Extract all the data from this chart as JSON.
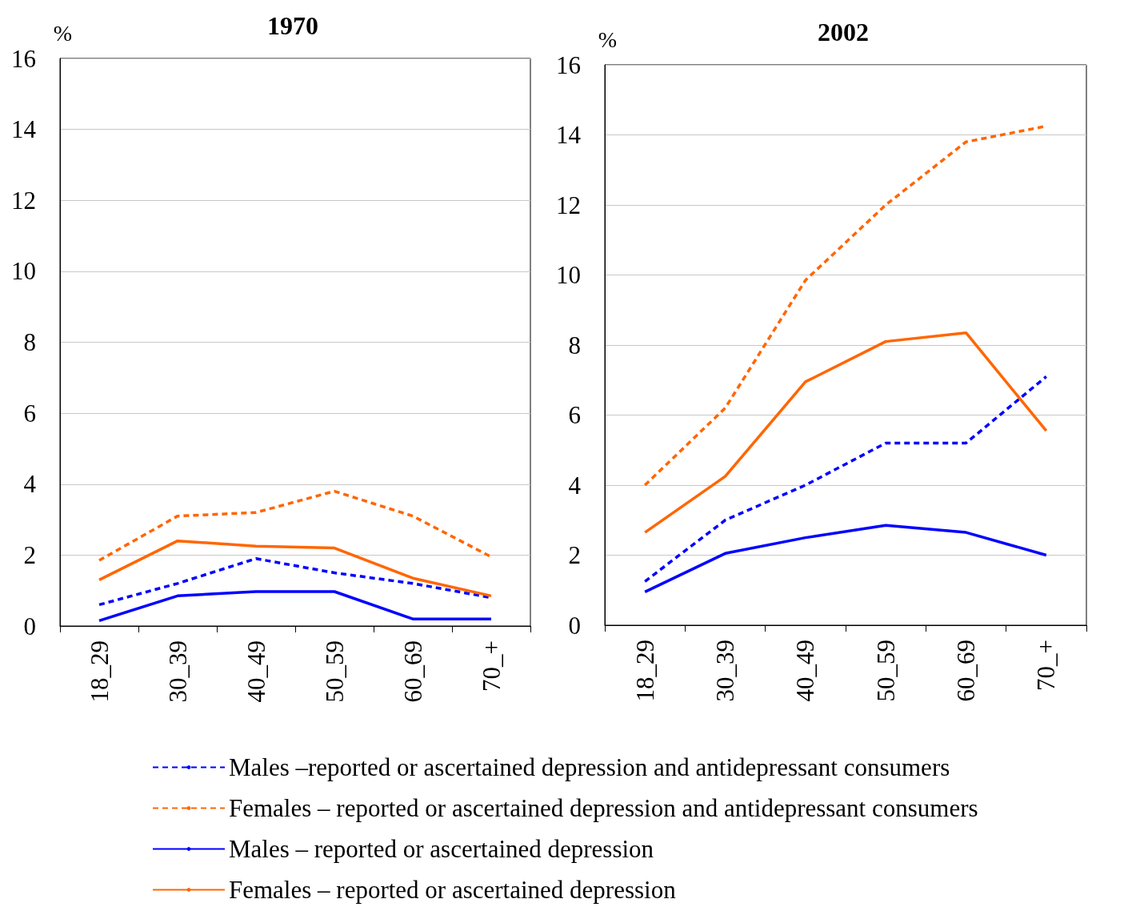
{
  "chart_data": [
    {
      "type": "line",
      "title": "1970",
      "ylabel": "%",
      "categories": [
        "18_29",
        "30_39",
        "40_49",
        "50_59",
        "60_69",
        "70_+"
      ],
      "ylim": [
        0,
        16
      ],
      "yticks": [
        0,
        2,
        4,
        6,
        8,
        10,
        12,
        14,
        16
      ],
      "grid": "y",
      "legend": "bottom",
      "marker": "none",
      "series": [
        {
          "name": "Males –reported or ascertained depression and antidepressant consumers",
          "color": "#0000ff",
          "line_style": "dashed",
          "values": [
            0.6,
            1.2,
            1.9,
            1.5,
            1.2,
            0.8
          ]
        },
        {
          "name": "Females – reported or ascertained depression and antidepressant consumers",
          "color": "#ff6600",
          "line_style": "dashed",
          "values": [
            1.85,
            3.1,
            3.2,
            3.8,
            3.1,
            1.95
          ]
        },
        {
          "name": "Males – reported or ascertained depression",
          "color": "#0000ff",
          "line_style": "solid",
          "values": [
            0.15,
            0.85,
            0.97,
            0.97,
            0.2,
            0.2
          ]
        },
        {
          "name": "Females – reported or ascertained depression",
          "color": "#ff6600",
          "line_style": "solid",
          "values": [
            1.3,
            2.4,
            2.25,
            2.2,
            1.35,
            0.85
          ]
        }
      ]
    },
    {
      "type": "line",
      "title": "2002",
      "ylabel": "%",
      "categories": [
        "18_29",
        "30_39",
        "40_49",
        "50_59",
        "60_69",
        "70_+"
      ],
      "ylim": [
        0,
        16
      ],
      "yticks": [
        0,
        2,
        4,
        6,
        8,
        10,
        12,
        14,
        16
      ],
      "grid": "y",
      "marker": "none",
      "series": [
        {
          "color": "#0000ff",
          "line_style": "dashed",
          "values": [
            1.25,
            3.0,
            4.0,
            5.2,
            5.2,
            7.1
          ]
        },
        {
          "color": "#ff6600",
          "line_style": "dashed",
          "values": [
            4.0,
            6.2,
            9.85,
            12.0,
            13.8,
            14.25
          ]
        },
        {
          "color": "#0000ff",
          "line_style": "solid",
          "values": [
            0.95,
            2.05,
            2.5,
            2.85,
            2.65,
            2.0
          ]
        },
        {
          "color": "#ff6600",
          "line_style": "solid",
          "values": [
            2.65,
            4.25,
            6.95,
            8.1,
            8.35,
            5.55
          ]
        }
      ]
    }
  ]
}
